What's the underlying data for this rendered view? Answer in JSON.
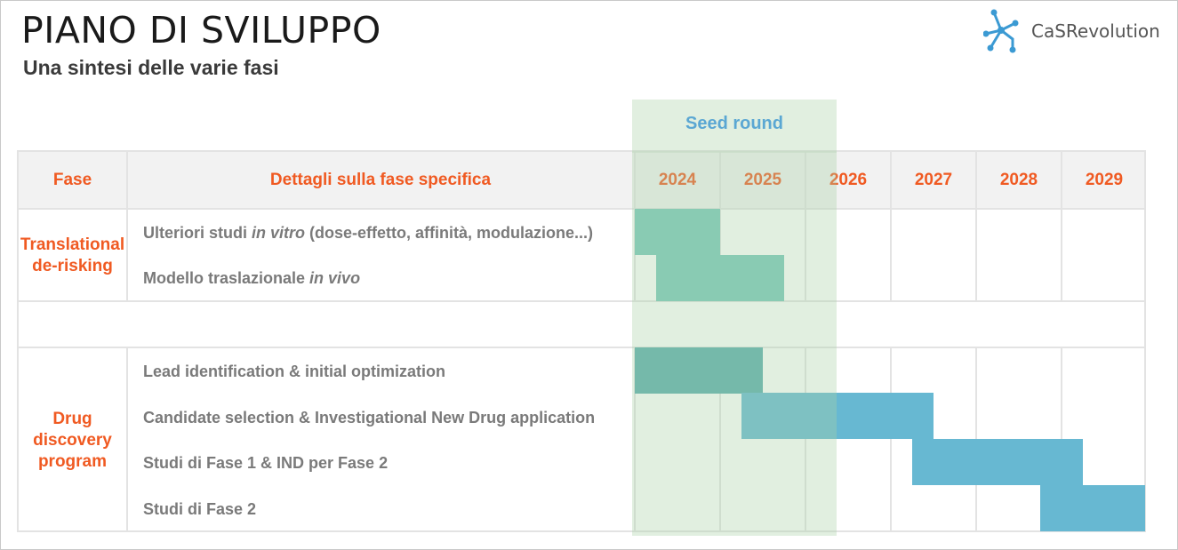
{
  "title": "PIANO DI SVILUPPO",
  "subtitle": "Una sintesi delle varie fasi",
  "logo": {
    "text": "CaSRevolution",
    "icon": "molecule-icon",
    "color": "#3b9ad3"
  },
  "header": {
    "phase": "Fase",
    "details": "Dettagli sulla fase specifica",
    "years": [
      "2024",
      "2025",
      "2026",
      "2027",
      "2028",
      "2029"
    ]
  },
  "seed_round": {
    "label": "Seed round",
    "start_year": 2024.0,
    "end_year": 2026.35
  },
  "phases": [
    {
      "label": "Translational de-risking",
      "tasks": [
        {
          "pre": "Ulteriori studi ",
          "italic": "in vitro",
          "post": " (dose-effetto, affinità, modulazione...)"
        },
        {
          "pre": "Modello traslazionale ",
          "italic": "in vivo",
          "post": ""
        }
      ]
    },
    {
      "label": "Drug discovery program",
      "tasks": [
        {
          "pre": "Lead identification & initial optimization",
          "italic": "",
          "post": ""
        },
        {
          "pre": "Candidate selection & Investigational New Drug application",
          "italic": "",
          "post": ""
        },
        {
          "pre": "Studi di Fase 1 & IND per Fase 2",
          "italic": "",
          "post": ""
        },
        {
          "pre": "Studi di Fase 2",
          "italic": "",
          "post": ""
        }
      ]
    }
  ],
  "chart_data": {
    "type": "gantt",
    "x_axis": {
      "years": [
        2024,
        2025,
        2026,
        2027,
        2028,
        2029
      ],
      "range": [
        2024,
        2030
      ]
    },
    "bars": [
      {
        "task": "Ulteriori studi in vitro (dose-effetto, affinità, modulazione...)",
        "start": 2024.0,
        "end": 2025.0,
        "color": "#79c8ba"
      },
      {
        "task": "Modello traslazionale in vivo",
        "start": 2024.25,
        "end": 2025.75,
        "color": "#79c8ba"
      },
      {
        "task": "Lead identification & initial optimization",
        "start": 2024.0,
        "end": 2025.5,
        "color": "#5aacad"
      },
      {
        "task": "Candidate selection & Investigational New Drug application",
        "start": 2025.25,
        "end": 2027.5,
        "color": "#67b8d2"
      },
      {
        "task": "Studi di Fase 1 & IND per Fase 2",
        "start": 2027.25,
        "end": 2029.25,
        "color": "#67b8d2"
      },
      {
        "task": "Studi di Fase 2",
        "start": 2028.75,
        "end": 2030.0,
        "color": "#67b8d2"
      }
    ]
  }
}
